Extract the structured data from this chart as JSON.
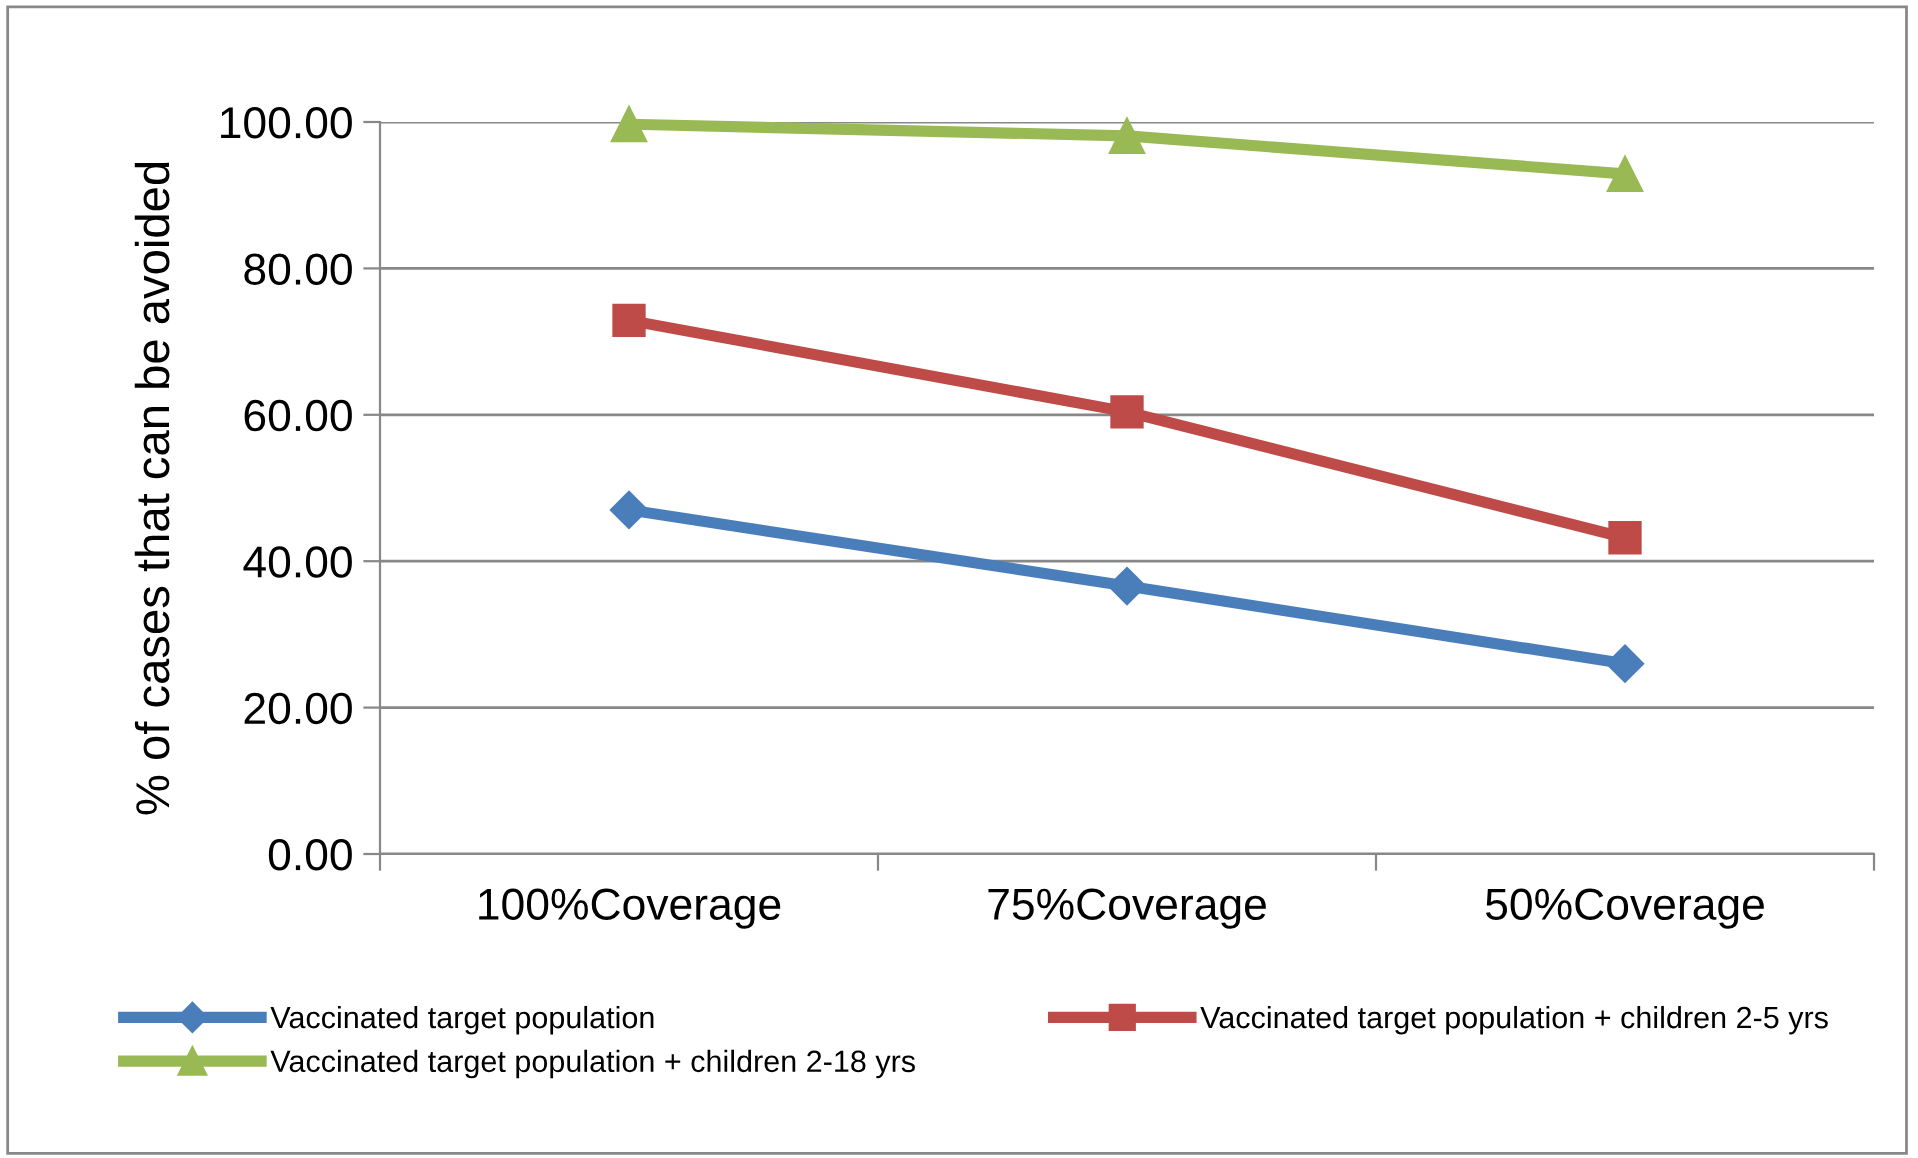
{
  "chart_data": {
    "type": "line",
    "ylabel": "% of cases that can be avoided",
    "categories": [
      "100%Coverage",
      "75%Coverage",
      "50%Coverage"
    ],
    "series": [
      {
        "name": "Vaccinated target population",
        "color": "#4a7ebb",
        "marker": "diamond",
        "values": [
          47.0,
          36.6,
          26.0
        ]
      },
      {
        "name": "Vaccinated target population + children 2-5 yrs",
        "color": "#be4b48",
        "marker": "square",
        "values": [
          72.9,
          60.4,
          43.2
        ]
      },
      {
        "name": "Vaccinated target population + children 2-18 yrs",
        "color": "#98b954",
        "marker": "triangle",
        "values": [
          99.7,
          98.1,
          92.9
        ]
      }
    ],
    "ylim": [
      0,
      100
    ],
    "yticks": [
      {
        "value": 0,
        "label": "0.00"
      },
      {
        "value": 20,
        "label": "20.00"
      },
      {
        "value": 40,
        "label": "40.00"
      },
      {
        "value": 60,
        "label": "60.00"
      },
      {
        "value": 80,
        "label": "80.00"
      },
      {
        "value": 100,
        "label": "100.00"
      }
    ],
    "grid": "y",
    "legend": "bottom",
    "line_style": "solid"
  }
}
